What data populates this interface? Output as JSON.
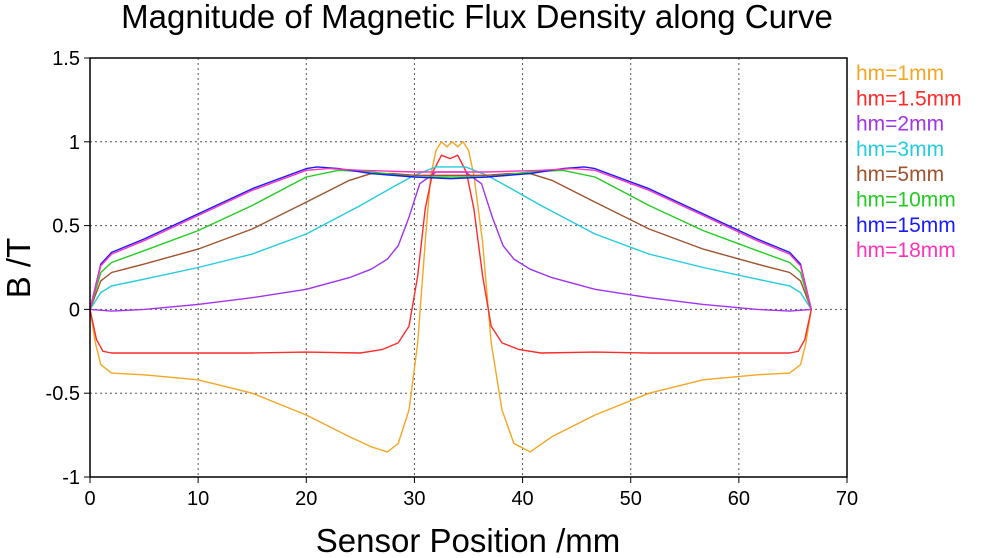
{
  "chart_data": {
    "type": "line",
    "title": "Magnitude of Magnetic Flux Density along Curve",
    "xlabel": "Sensor Position /mm",
    "ylabel": "B /T",
    "xlim": [
      0,
      70
    ],
    "ylim": [
      -1,
      1.5
    ],
    "xticks": [
      0,
      10,
      20,
      30,
      40,
      50,
      60,
      70
    ],
    "yticks": [
      -1,
      -0.5,
      0,
      0.5,
      1,
      1.5
    ],
    "xtick_labels": [
      "0",
      "10",
      "20",
      "30",
      "40",
      "50",
      "60",
      "70"
    ],
    "ytick_labels": [
      "-1",
      "-0.5",
      "0",
      "0.5",
      "1",
      "1.5"
    ],
    "grid": true,
    "legend_position": "right",
    "series": [
      {
        "name": "hm=1mm",
        "color": "#f5a623",
        "x": [
          0,
          0.5,
          1,
          2,
          5,
          10,
          15,
          20,
          24,
          26,
          27.5,
          28.5,
          29.5,
          30.3,
          31,
          31.5,
          32,
          32.5,
          33,
          33.5,
          34,
          34.5,
          35,
          35.5,
          36.3,
          37.1,
          38.1,
          39.2,
          40.7,
          42.7,
          46.7,
          51.7,
          56.7,
          61.7,
          64.7,
          65.7,
          66.2,
          66.7
        ],
        "y": [
          0,
          -0.2,
          -0.33,
          -0.38,
          -0.39,
          -0.42,
          -0.5,
          -0.63,
          -0.76,
          -0.82,
          -0.85,
          -0.8,
          -0.6,
          -0.2,
          0.4,
          0.8,
          0.95,
          1.0,
          0.97,
          1.0,
          0.97,
          1.0,
          0.95,
          0.8,
          0.4,
          -0.2,
          -0.6,
          -0.8,
          -0.85,
          -0.76,
          -0.63,
          -0.5,
          -0.42,
          -0.39,
          -0.38,
          -0.33,
          -0.2,
          0
        ]
      },
      {
        "name": "hm=1.5mm",
        "color": "#ff2a2a",
        "x": [
          0,
          0.6,
          1.2,
          2,
          5,
          10,
          15,
          20,
          25,
          27,
          28.5,
          29.5,
          30.3,
          31,
          31.7,
          32.5,
          33.3,
          34,
          34.8,
          35.5,
          36.3,
          37.1,
          38.1,
          39.7,
          41.7,
          46.7,
          51.7,
          56.7,
          61.7,
          64.7,
          65.5,
          66.1,
          66.7
        ],
        "y": [
          0,
          -0.18,
          -0.25,
          -0.26,
          -0.26,
          -0.26,
          -0.26,
          -0.255,
          -0.26,
          -0.24,
          -0.2,
          -0.1,
          0.2,
          0.6,
          0.82,
          0.92,
          0.9,
          0.92,
          0.82,
          0.6,
          0.2,
          -0.1,
          -0.2,
          -0.24,
          -0.26,
          -0.255,
          -0.26,
          -0.26,
          -0.26,
          -0.26,
          -0.25,
          -0.18,
          0
        ],
        "style": "solid"
      },
      {
        "name": "hm=2mm",
        "color": "#a033ee",
        "x": [
          0,
          2,
          5,
          10,
          15,
          20,
          24,
          26,
          27.5,
          28.5,
          29.5,
          30.5,
          32,
          33.35,
          34.7,
          36.2,
          37.2,
          38.2,
          39.2,
          40.7,
          42.7,
          46.7,
          51.7,
          56.7,
          61.7,
          64.7,
          66.7
        ],
        "y": [
          0,
          -0.01,
          0,
          0.03,
          0.07,
          0.12,
          0.19,
          0.24,
          0.3,
          0.38,
          0.55,
          0.75,
          0.82,
          0.82,
          0.82,
          0.75,
          0.55,
          0.38,
          0.3,
          0.24,
          0.19,
          0.12,
          0.07,
          0.03,
          0,
          -0.01,
          0
        ]
      },
      {
        "name": "hm=3mm",
        "color": "#22ccdd",
        "x": [
          0,
          1,
          2,
          5,
          10,
          15,
          20,
          25,
          28,
          30,
          32,
          33.35,
          34.7,
          36.7,
          38.7,
          41.7,
          46.7,
          51.7,
          56.7,
          61.7,
          64.7,
          65.7,
          66.7
        ],
        "y": [
          0,
          0.1,
          0.14,
          0.18,
          0.25,
          0.33,
          0.45,
          0.62,
          0.73,
          0.8,
          0.85,
          0.85,
          0.85,
          0.8,
          0.73,
          0.62,
          0.45,
          0.33,
          0.25,
          0.18,
          0.14,
          0.1,
          0
        ]
      },
      {
        "name": "hm=5mm",
        "color": "#a0522d",
        "x": [
          0,
          1,
          2,
          5,
          10,
          15,
          20,
          24,
          26,
          28,
          30,
          33.35,
          36.7,
          38.7,
          40.7,
          42.7,
          46.7,
          51.7,
          56.7,
          61.7,
          64.7,
          65.7,
          66.7
        ],
        "y": [
          0,
          0.17,
          0.22,
          0.27,
          0.36,
          0.48,
          0.64,
          0.77,
          0.81,
          0.81,
          0.8,
          0.8,
          0.8,
          0.81,
          0.81,
          0.77,
          0.64,
          0.48,
          0.36,
          0.27,
          0.22,
          0.17,
          0
        ]
      },
      {
        "name": "hm=10mm",
        "color": "#22cc22",
        "x": [
          0,
          1,
          2,
          5,
          10,
          15,
          20,
          23,
          26,
          30,
          33.35,
          36.7,
          40.7,
          43.7,
          46.7,
          51.7,
          56.7,
          61.7,
          64.7,
          65.7,
          66.7
        ],
        "y": [
          0,
          0.22,
          0.28,
          0.35,
          0.47,
          0.62,
          0.79,
          0.83,
          0.82,
          0.79,
          0.79,
          0.79,
          0.82,
          0.83,
          0.79,
          0.62,
          0.47,
          0.35,
          0.28,
          0.22,
          0
        ]
      },
      {
        "name": "hm=15mm",
        "color": "#1a1aff",
        "x": [
          0,
          1,
          2,
          5,
          10,
          15,
          20,
          21,
          23,
          26,
          30,
          33.35,
          36.7,
          40.7,
          43.7,
          45.7,
          46.7,
          51.7,
          56.7,
          61.7,
          64.7,
          65.7,
          66.7
        ],
        "y": [
          0,
          0.27,
          0.34,
          0.42,
          0.57,
          0.72,
          0.84,
          0.85,
          0.84,
          0.81,
          0.79,
          0.78,
          0.79,
          0.81,
          0.84,
          0.85,
          0.84,
          0.72,
          0.57,
          0.42,
          0.34,
          0.27,
          0
        ]
      },
      {
        "name": "hm=18mm",
        "color": "#ff33bb",
        "x": [
          0,
          1,
          2,
          5,
          10,
          15,
          20,
          22,
          25,
          30,
          33.35,
          36.7,
          41.7,
          44.7,
          46.7,
          51.7,
          56.7,
          61.7,
          64.7,
          65.7,
          66.7
        ],
        "y": [
          0,
          0.26,
          0.33,
          0.41,
          0.56,
          0.71,
          0.83,
          0.84,
          0.83,
          0.82,
          0.82,
          0.82,
          0.83,
          0.84,
          0.83,
          0.71,
          0.56,
          0.41,
          0.33,
          0.26,
          0
        ]
      }
    ]
  }
}
